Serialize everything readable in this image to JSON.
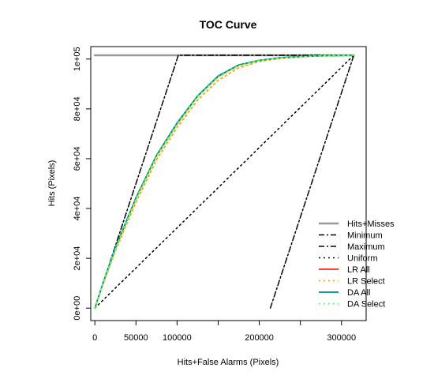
{
  "chart_data": {
    "type": "line",
    "title": "TOC Curve",
    "xlabel": "Hits+False Alarms (Pixels)",
    "ylabel": "Hits (Pixels)",
    "xlim": [
      -5000,
      330000
    ],
    "ylim": [
      -5000,
      105000
    ],
    "x_ticks": [
      0,
      50000,
      100000,
      200000,
      300000
    ],
    "x_tick_labels": [
      "0",
      "50000",
      "100000",
      "200000",
      "300000"
    ],
    "y_ticks": [
      0,
      20000,
      40000,
      60000,
      80000,
      100000
    ],
    "y_tick_labels": [
      "0e+00",
      "2e+04",
      "4e+04",
      "6e+04",
      "8e+04",
      "1e+05"
    ],
    "legend_position": "bottom-right",
    "series": [
      {
        "name": "Hits+Misses",
        "color": "#999999",
        "dash": "solid",
        "width": 2.5,
        "x": [
          0,
          315000
        ],
        "y": [
          101500,
          101500
        ]
      },
      {
        "name": "Minimum",
        "color": "#000000",
        "dash": "dashdot",
        "width": 1.5,
        "x": [
          213500,
          315000
        ],
        "y": [
          0,
          101500
        ]
      },
      {
        "name": "Maximum",
        "color": "#000000",
        "dash": "dashdot",
        "width": 1.5,
        "x": [
          0,
          101500,
          315000
        ],
        "y": [
          0,
          101500,
          101500
        ]
      },
      {
        "name": "Uniform",
        "color": "#000000",
        "dash": "dotted",
        "width": 1.5,
        "x": [
          0,
          315000
        ],
        "y": [
          0,
          101500
        ]
      },
      {
        "name": "LR All",
        "color": "#ff0000",
        "dash": "solid",
        "width": 1.5,
        "x": [
          0,
          10000,
          25000,
          50000,
          75000,
          100000,
          125000,
          150000,
          175000,
          200000,
          225000,
          250000,
          275000,
          300000,
          315000
        ],
        "y": [
          0,
          10000,
          24000,
          44000,
          61000,
          74000,
          85000,
          93000,
          97500,
          99500,
          100500,
          101000,
          101300,
          101450,
          101500
        ]
      },
      {
        "name": "LR Select",
        "color": "#ffa500",
        "dash": "dotted",
        "width": 1.8,
        "x": [
          0,
          10000,
          25000,
          50000,
          75000,
          100000,
          125000,
          150000,
          175000,
          200000,
          225000,
          250000,
          275000,
          300000,
          315000
        ],
        "y": [
          0,
          9500,
          23000,
          42500,
          59500,
          72500,
          83500,
          91500,
          96500,
          99000,
          100200,
          100900,
          101300,
          101450,
          101500
        ]
      },
      {
        "name": "DA All",
        "color": "#008b8b",
        "dash": "solid",
        "width": 1.8,
        "x": [
          0,
          10000,
          25000,
          50000,
          75000,
          100000,
          125000,
          150000,
          175000,
          200000,
          225000,
          250000,
          275000,
          300000,
          315000
        ],
        "y": [
          0,
          10200,
          24300,
          44300,
          61300,
          74300,
          85200,
          93200,
          97600,
          99500,
          100500,
          101000,
          101300,
          101450,
          101500
        ]
      },
      {
        "name": "DA Select",
        "color": "#66ff66",
        "dash": "dotted",
        "width": 1.8,
        "x": [
          0,
          10000,
          25000,
          50000,
          75000,
          100000,
          125000,
          150000,
          175000,
          200000,
          225000,
          250000,
          275000,
          300000,
          315000
        ],
        "y": [
          0,
          10000,
          23800,
          43800,
          60800,
          73800,
          84800,
          92800,
          97300,
          99400,
          100400,
          100950,
          101300,
          101450,
          101500
        ]
      }
    ]
  }
}
